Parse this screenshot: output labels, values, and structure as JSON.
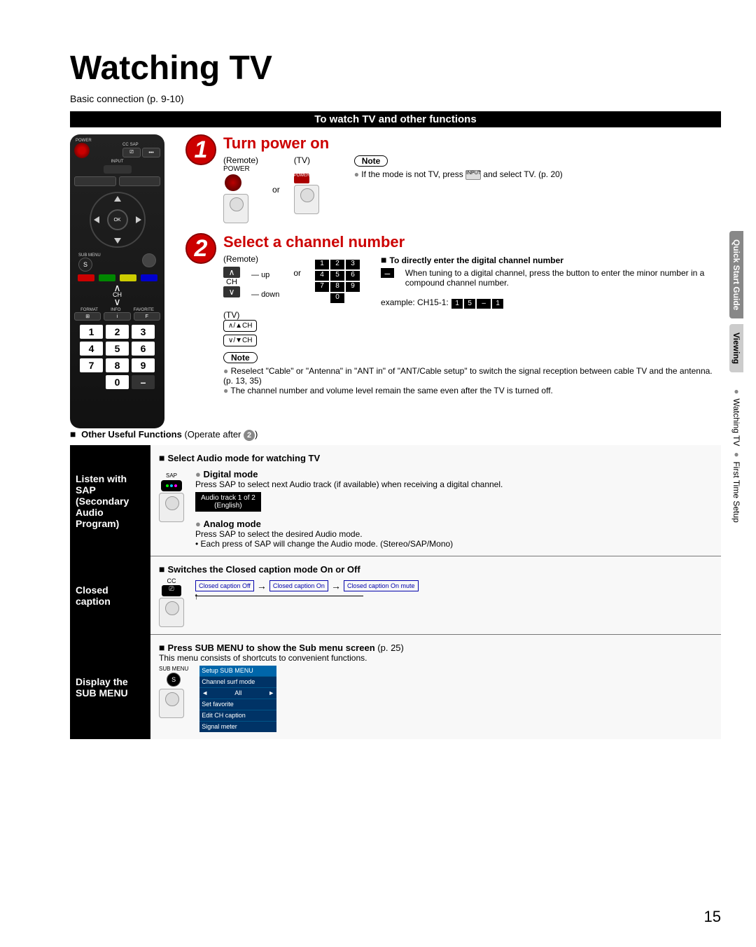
{
  "page": {
    "title": "Watching TV",
    "subtitle": "Basic connection (p. 9-10)",
    "section_bar": "To watch TV and other functions",
    "page_number": "15"
  },
  "remote": {
    "power_label": "POWER",
    "cc_label": "CC",
    "sap_label": "SAP",
    "input_label": "INPUT",
    "sub_menu_label": "SUB MENU",
    "ok_label": "OK",
    "ch_label": "CH",
    "format_label": "FORMAT",
    "info_label": "INFO",
    "favorite_label": "FAVORITE",
    "vol_label": "VOL",
    "color_btns": [
      "#c00000",
      "#008000",
      "#c8c800",
      "#0000c8"
    ],
    "num_keys": [
      "1",
      "2",
      "3",
      "4",
      "5",
      "6",
      "7",
      "8",
      "9",
      "",
      "0",
      "–"
    ],
    "s_label": "S"
  },
  "step1": {
    "num": "1",
    "title": "Turn power on",
    "remote_label": "(Remote)",
    "power_label": "POWER",
    "or": "or",
    "tv_label": "(TV)",
    "tv_power": "POWER",
    "note": "Note",
    "note_text": "If the mode is not TV, press",
    "note_text2": "and select TV. (p. 20)",
    "input_label": "INPUT"
  },
  "step2": {
    "num": "2",
    "title": "Select a channel number",
    "remote_label": "(Remote)",
    "tv_label": "(TV)",
    "up": "up",
    "down": "down",
    "ch": "CH",
    "or": "or",
    "keypad": [
      "1",
      "2",
      "3",
      "4",
      "5",
      "6",
      "7",
      "8",
      "9",
      "",
      "0",
      ""
    ],
    "digital_heading": "To directly enter the digital channel number",
    "digital_text": "When tuning to a digital channel, press the button to enter the minor number in a compound channel number.",
    "example_label": "example:  CH15-1:",
    "example_keys": [
      "1",
      "5",
      "–",
      "1"
    ],
    "tv_ch_up": "∧/▲CH",
    "tv_ch_down": "∨/▼CH",
    "note": "Note",
    "note_bullets": [
      "Reselect \"Cable\" or \"Antenna\" in \"ANT in\" of \"ANT/Cable setup\" to switch the signal reception between cable TV and the antenna. (p. 13, 35)",
      "The channel number and volume level remain the same even after the TV is turned off."
    ]
  },
  "other_funcs": {
    "heading_prefix": "Other Useful Functions",
    "heading_suffix": "(Operate after",
    "heading_end": ")"
  },
  "sap": {
    "left_title": "Listen with SAP (Secondary Audio Program)",
    "main_heading": "Select Audio mode for watching TV",
    "btn_label": "SAP",
    "digital_h": "Digital mode",
    "digital_text": "Press SAP to select next Audio track (if available) when receiving a digital channel.",
    "track_line1": "Audio track 1 of 2",
    "track_line2": "(English)",
    "analog_h": "Analog mode",
    "analog_text1": "Press SAP to select the desired Audio mode.",
    "analog_text2": "• Each press of SAP will change the Audio mode. (Stereo/SAP/Mono)"
  },
  "cc": {
    "left_title": "Closed caption",
    "heading": "Switches the Closed caption mode On or Off",
    "btn_label": "CC",
    "modes": [
      "Closed caption Off",
      "Closed caption On",
      "Closed caption On mute"
    ]
  },
  "submenu": {
    "left_title": "Display the SUB MENU",
    "heading": "Press SUB MENU to show the Sub menu screen",
    "heading_ref": "(p. 25)",
    "text": "This menu consists of shortcuts to convenient functions.",
    "btn_label": "SUB MENU",
    "s": "S",
    "menu_title": "Setup SUB MENU",
    "menu_items": [
      "Channel surf mode",
      "All",
      "Set favorite",
      "Edit CH caption",
      "Signal meter"
    ]
  },
  "side_tabs": {
    "t1": "Quick Start Guide",
    "t2": "Viewing",
    "t3a": "Watching TV",
    "t3b": "First Time Setup"
  }
}
